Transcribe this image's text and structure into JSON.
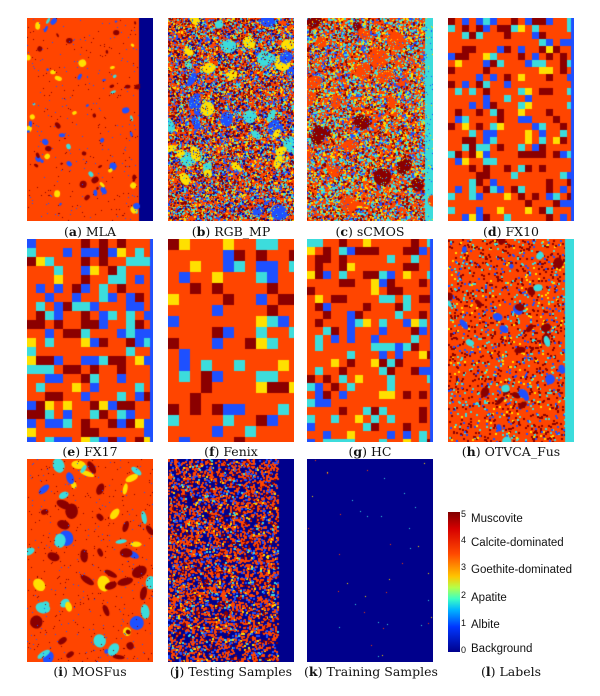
{
  "figure": {
    "panels": [
      {
        "label": "a",
        "name": "MLA",
        "style": "mla"
      },
      {
        "label": "b",
        "name": "RGB_MP",
        "style": "rgbmp"
      },
      {
        "label": "c",
        "name": "sCMOS",
        "style": "scmos"
      },
      {
        "label": "d",
        "name": "FX10",
        "style": "fx10"
      },
      {
        "label": "e",
        "name": "FX17",
        "style": "fx17"
      },
      {
        "label": "f",
        "name": "Fenix",
        "style": "fenix"
      },
      {
        "label": "g",
        "name": "HC",
        "style": "hc"
      },
      {
        "label": "h",
        "name": "OTVCA_Fus",
        "style": "otvca"
      },
      {
        "label": "i",
        "name": "MOSFus",
        "style": "mosfus"
      },
      {
        "label": "j",
        "name": "Testing Samples",
        "style": "testing"
      },
      {
        "label": "k",
        "name": "Training Samples",
        "style": "training"
      },
      {
        "label": "l",
        "name": "Labels",
        "style": "legend"
      }
    ],
    "legend": {
      "classes": [
        {
          "value": "5",
          "name": "Muscovite",
          "color": "#8b0000"
        },
        {
          "value": "4",
          "name": "Calcite-dominated",
          "color": "#ff4500"
        },
        {
          "value": "3",
          "name": "Goethite-dominated",
          "color": "#ffe000"
        },
        {
          "value": "2",
          "name": "Apatite",
          "color": "#3cdcdc"
        },
        {
          "value": "1",
          "name": "Albite",
          "color": "#1e50ff"
        },
        {
          "value": "0",
          "name": "Background",
          "color": "#00008c"
        }
      ]
    }
  }
}
